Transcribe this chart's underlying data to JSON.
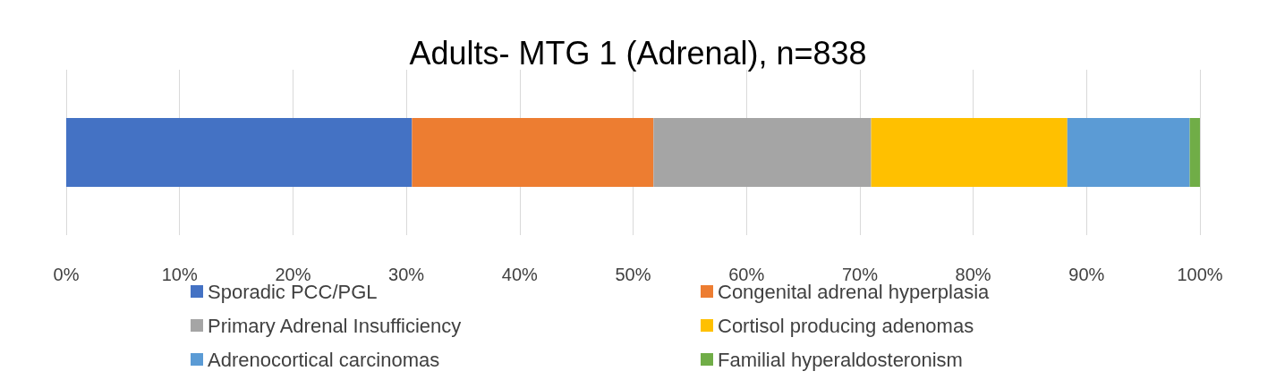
{
  "chart_data": {
    "type": "bar",
    "title": "Adults- MTG 1 (Adrenal), n=838",
    "orientation": "horizontal",
    "stacked": true,
    "categories": [
      null
    ],
    "series": [
      {
        "name": "Sporadic PCC/PGL",
        "color": "#4472c4",
        "values": [
          30.5
        ]
      },
      {
        "name": "Congenital adrenal hyperplasia",
        "color": "#ed7d31",
        "values": [
          21.3
        ]
      },
      {
        "name": "Primary Adrenal Insufficiency",
        "color": "#a5a5a5",
        "values": [
          19.2
        ]
      },
      {
        "name": "Cortisol producing adenomas",
        "color": "#ffc000",
        "values": [
          17.3
        ]
      },
      {
        "name": "Adrenocortical carcinomas",
        "color": "#5b9bd5",
        "values": [
          10.8
        ]
      },
      {
        "name": "Familial hyperaldosteronism",
        "color": "#70ad47",
        "values": [
          0.9
        ]
      }
    ],
    "xlim": [
      0,
      100
    ],
    "xticks": [
      {
        "value": 0,
        "label": "0%"
      },
      {
        "value": 10,
        "label": "10%"
      },
      {
        "value": 20,
        "label": "20%"
      },
      {
        "value": 30,
        "label": "30%"
      },
      {
        "value": 40,
        "label": "40%"
      },
      {
        "value": 50,
        "label": "50%"
      },
      {
        "value": 60,
        "label": "60%"
      },
      {
        "value": 70,
        "label": "70%"
      },
      {
        "value": 80,
        "label": "80%"
      },
      {
        "value": 90,
        "label": "90%"
      },
      {
        "value": 100,
        "label": "100%"
      }
    ],
    "grid": "x",
    "legend": "bottom"
  }
}
